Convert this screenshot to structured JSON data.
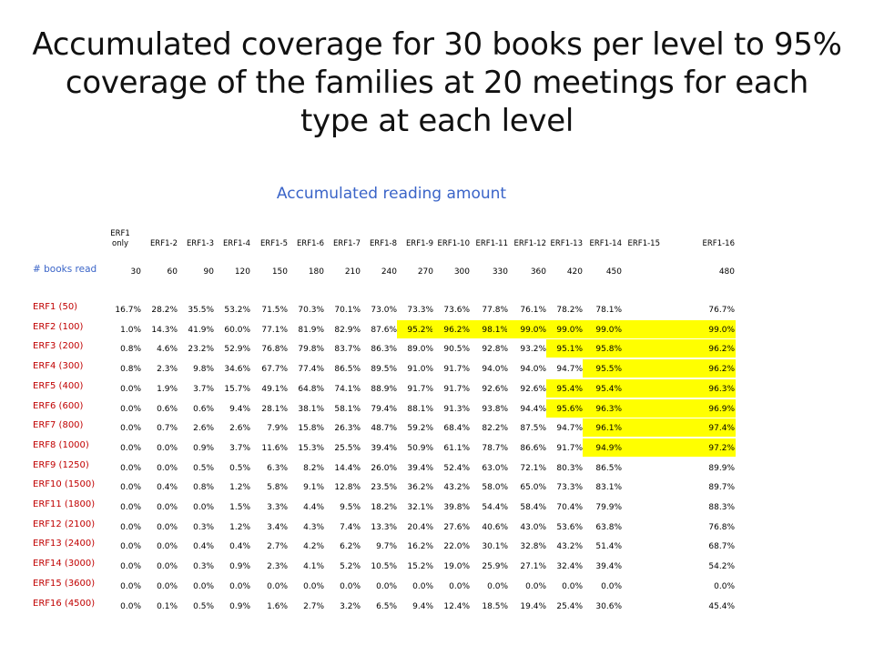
{
  "title": "Accumulated coverage for 30 books per level to 95% coverage of the families at 20 meetings for each type at each level",
  "subtitle": "Accumulated reading amount",
  "books_read_label": "# books read",
  "highlight_color": "#ffff00",
  "columns": [
    "ERF1 only",
    "ERF1-2",
    "ERF1-3",
    "ERF1-4",
    "ERF1-5",
    "ERF1-6",
    "ERF1-7",
    "ERF1-8",
    "ERF1-9",
    "ERF1-10",
    "ERF1-11",
    "ERF1-12",
    "ERF1-13",
    "ERF1-14",
    "ERF1-15",
    "ERF1-16"
  ],
  "books_read": [
    "30",
    "60",
    "90",
    "120",
    "150",
    "180",
    "210",
    "240",
    "270",
    "300",
    "330",
    "360",
    "420",
    "450",
    "",
    "480"
  ],
  "rows": [
    {
      "label": "ERF1 (50)",
      "values": [
        "16.7%",
        "28.2%",
        "35.5%",
        "53.2%",
        "71.5%",
        "70.3%",
        "70.1%",
        "73.0%",
        "73.3%",
        "73.6%",
        "77.8%",
        "76.1%",
        "78.2%",
        "78.1%",
        "",
        "76.7%"
      ],
      "highlight": []
    },
    {
      "label": "ERF2 (100)",
      "values": [
        "1.0%",
        "14.3%",
        "41.9%",
        "60.0%",
        "77.1%",
        "81.9%",
        "82.9%",
        "87.6%",
        "95.2%",
        "96.2%",
        "98.1%",
        "99.0%",
        "99.0%",
        "99.0%",
        "",
        "99.0%"
      ],
      "highlight": [
        8,
        9,
        10,
        11,
        12,
        13,
        14,
        15
      ]
    },
    {
      "label": "ERF3 (200)",
      "values": [
        "0.8%",
        "4.6%",
        "23.2%",
        "52.9%",
        "76.8%",
        "79.8%",
        "83.7%",
        "86.3%",
        "89.0%",
        "90.5%",
        "92.8%",
        "93.2%",
        "95.1%",
        "95.8%",
        "",
        "96.2%"
      ],
      "highlight": [
        12,
        13,
        14,
        15
      ]
    },
    {
      "label": "ERF4 (300)",
      "values": [
        "0.8%",
        "2.3%",
        "9.8%",
        "34.6%",
        "67.7%",
        "77.4%",
        "86.5%",
        "89.5%",
        "91.0%",
        "91.7%",
        "94.0%",
        "94.0%",
        "94.7%",
        "95.5%",
        "",
        "96.2%"
      ],
      "highlight": [
        13,
        14,
        15
      ]
    },
    {
      "label": "ERF5 (400)",
      "values": [
        "0.0%",
        "1.9%",
        "3.7%",
        "15.7%",
        "49.1%",
        "64.8%",
        "74.1%",
        "88.9%",
        "91.7%",
        "91.7%",
        "92.6%",
        "92.6%",
        "95.4%",
        "95.4%",
        "",
        "96.3%"
      ],
      "highlight": [
        12,
        13,
        14,
        15
      ]
    },
    {
      "label": "ERF6 (600)",
      "values": [
        "0.0%",
        "0.6%",
        "0.6%",
        "9.4%",
        "28.1%",
        "38.1%",
        "58.1%",
        "79.4%",
        "88.1%",
        "91.3%",
        "93.8%",
        "94.4%",
        "95.6%",
        "96.3%",
        "",
        "96.9%"
      ],
      "highlight": [
        12,
        13,
        14,
        15
      ]
    },
    {
      "label": "ERF7 (800)",
      "values": [
        "0.0%",
        "0.7%",
        "2.6%",
        "2.6%",
        "7.9%",
        "15.8%",
        "26.3%",
        "48.7%",
        "59.2%",
        "68.4%",
        "82.2%",
        "87.5%",
        "94.7%",
        "96.1%",
        "",
        "97.4%"
      ],
      "highlight": [
        13,
        14,
        15
      ]
    },
    {
      "label": "ERF8 (1000)",
      "values": [
        "0.0%",
        "0.0%",
        "0.9%",
        "3.7%",
        "11.6%",
        "15.3%",
        "25.5%",
        "39.4%",
        "50.9%",
        "61.1%",
        "78.7%",
        "86.6%",
        "91.7%",
        "94.9%",
        "",
        "97.2%"
      ],
      "highlight": [
        13,
        14,
        15
      ]
    },
    {
      "label": "ERF9 (1250)",
      "values": [
        "0.0%",
        "0.0%",
        "0.5%",
        "0.5%",
        "6.3%",
        "8.2%",
        "14.4%",
        "26.0%",
        "39.4%",
        "52.4%",
        "63.0%",
        "72.1%",
        "80.3%",
        "86.5%",
        "",
        "89.9%"
      ],
      "highlight": []
    },
    {
      "label": "ERF10 (1500)",
      "values": [
        "0.0%",
        "0.4%",
        "0.8%",
        "1.2%",
        "5.8%",
        "9.1%",
        "12.8%",
        "23.5%",
        "36.2%",
        "43.2%",
        "58.0%",
        "65.0%",
        "73.3%",
        "83.1%",
        "",
        "89.7%"
      ],
      "highlight": []
    },
    {
      "label": "ERF11 (1800)",
      "values": [
        "0.0%",
        "0.0%",
        "0.0%",
        "1.5%",
        "3.3%",
        "4.4%",
        "9.5%",
        "18.2%",
        "32.1%",
        "39.8%",
        "54.4%",
        "58.4%",
        "70.4%",
        "79.9%",
        "",
        "88.3%"
      ],
      "highlight": []
    },
    {
      "label": "ERF12 (2100)",
      "values": [
        "0.0%",
        "0.0%",
        "0.3%",
        "1.2%",
        "3.4%",
        "4.3%",
        "7.4%",
        "13.3%",
        "20.4%",
        "27.6%",
        "40.6%",
        "43.0%",
        "53.6%",
        "63.8%",
        "",
        "76.8%"
      ],
      "highlight": []
    },
    {
      "label": "ERF13 (2400)",
      "values": [
        "0.0%",
        "0.0%",
        "0.4%",
        "0.4%",
        "2.7%",
        "4.2%",
        "6.2%",
        "9.7%",
        "16.2%",
        "22.0%",
        "30.1%",
        "32.8%",
        "43.2%",
        "51.4%",
        "",
        "68.7%"
      ],
      "highlight": []
    },
    {
      "label": "ERF14 (3000)",
      "values": [
        "0.0%",
        "0.0%",
        "0.3%",
        "0.9%",
        "2.3%",
        "4.1%",
        "5.2%",
        "10.5%",
        "15.2%",
        "19.0%",
        "25.9%",
        "27.1%",
        "32.4%",
        "39.4%",
        "",
        "54.2%"
      ],
      "highlight": []
    },
    {
      "label": "ERF15 (3600)",
      "values": [
        "0.0%",
        "0.0%",
        "0.0%",
        "0.0%",
        "0.0%",
        "0.0%",
        "0.0%",
        "0.0%",
        "0.0%",
        "0.0%",
        "0.0%",
        "0.0%",
        "0.0%",
        "0.0%",
        "",
        "0.0%"
      ],
      "highlight": []
    },
    {
      "label": "ERF16 (4500)",
      "values": [
        "0.0%",
        "0.1%",
        "0.5%",
        "0.9%",
        "1.6%",
        "2.7%",
        "3.2%",
        "6.5%",
        "9.4%",
        "12.4%",
        "18.5%",
        "19.4%",
        "25.4%",
        "30.6%",
        "",
        "45.4%"
      ],
      "highlight": []
    }
  ]
}
